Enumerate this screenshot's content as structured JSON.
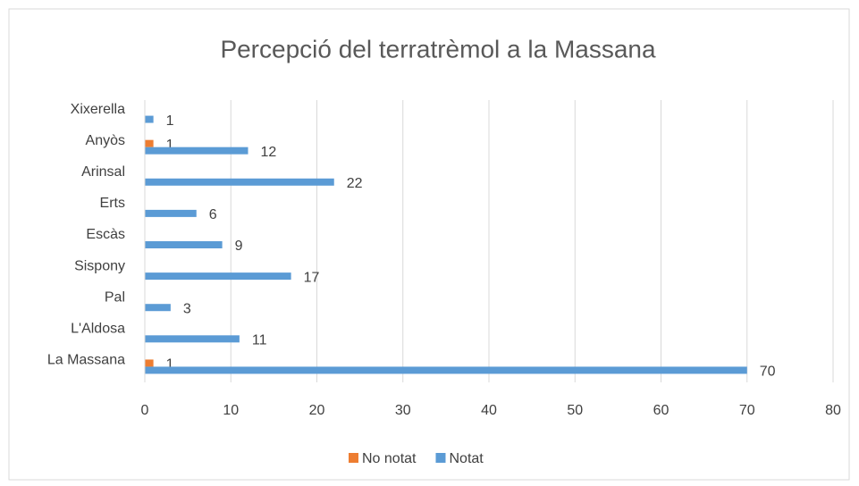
{
  "chart_data": {
    "type": "hbar",
    "title": "Percepció del terratrèmol a la Massana",
    "categories": [
      "La Massana",
      "L'Aldosa",
      "Pal",
      "Sispony",
      "Escàs",
      "Erts",
      "Arinsal",
      "Anyòs",
      "Xixerella"
    ],
    "series": [
      {
        "name": "No notat",
        "color": "#ed7d31",
        "values": [
          1,
          null,
          null,
          null,
          null,
          null,
          null,
          1,
          null
        ]
      },
      {
        "name": "Notat",
        "color": "#5b9bd5",
        "values": [
          70,
          11,
          3,
          17,
          9,
          6,
          22,
          12,
          1
        ]
      }
    ],
    "xlim": [
      0,
      80
    ],
    "xticks": [
      0,
      10,
      20,
      30,
      40,
      50,
      60,
      70,
      80
    ],
    "grid": true,
    "legend": "bottom"
  }
}
